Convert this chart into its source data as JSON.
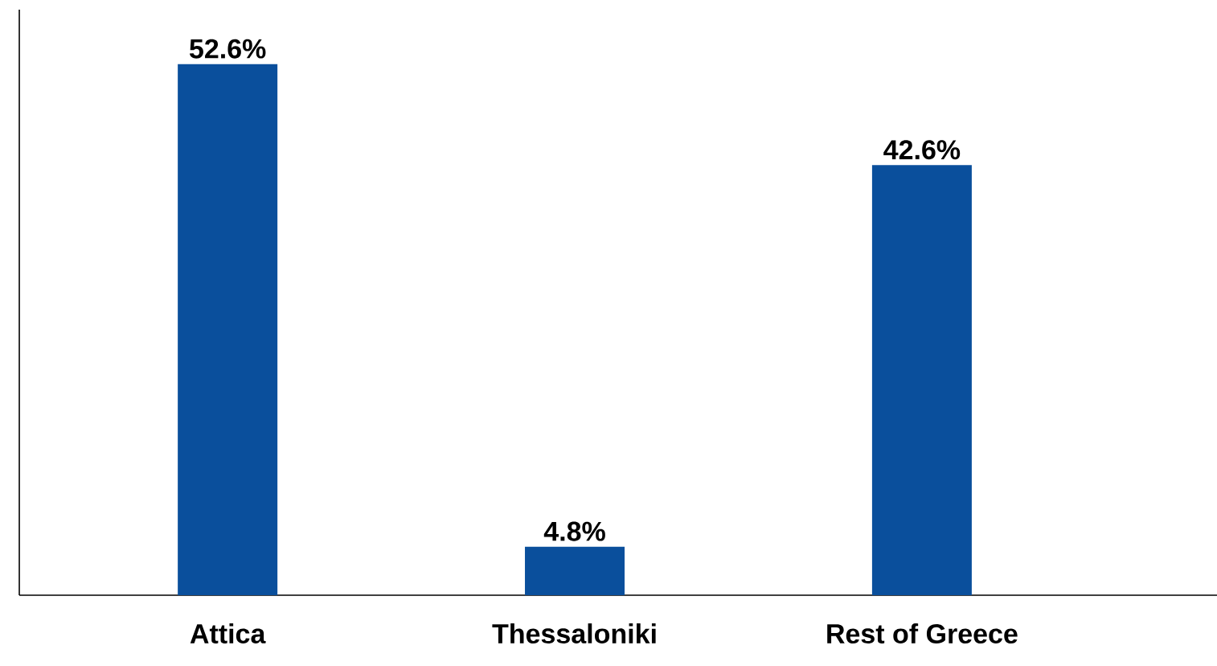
{
  "chart_data": {
    "type": "bar",
    "categories": [
      "Attica",
      "Thessaloniki",
      "Rest of Greece"
    ],
    "values": [
      52.6,
      4.8,
      42.6
    ],
    "value_labels": [
      "52.6%",
      "4.8%",
      "42.6%"
    ],
    "color": "#0a4f9c",
    "ylim": [
      0,
      58
    ],
    "grid": false,
    "tick_labels": "x"
  }
}
